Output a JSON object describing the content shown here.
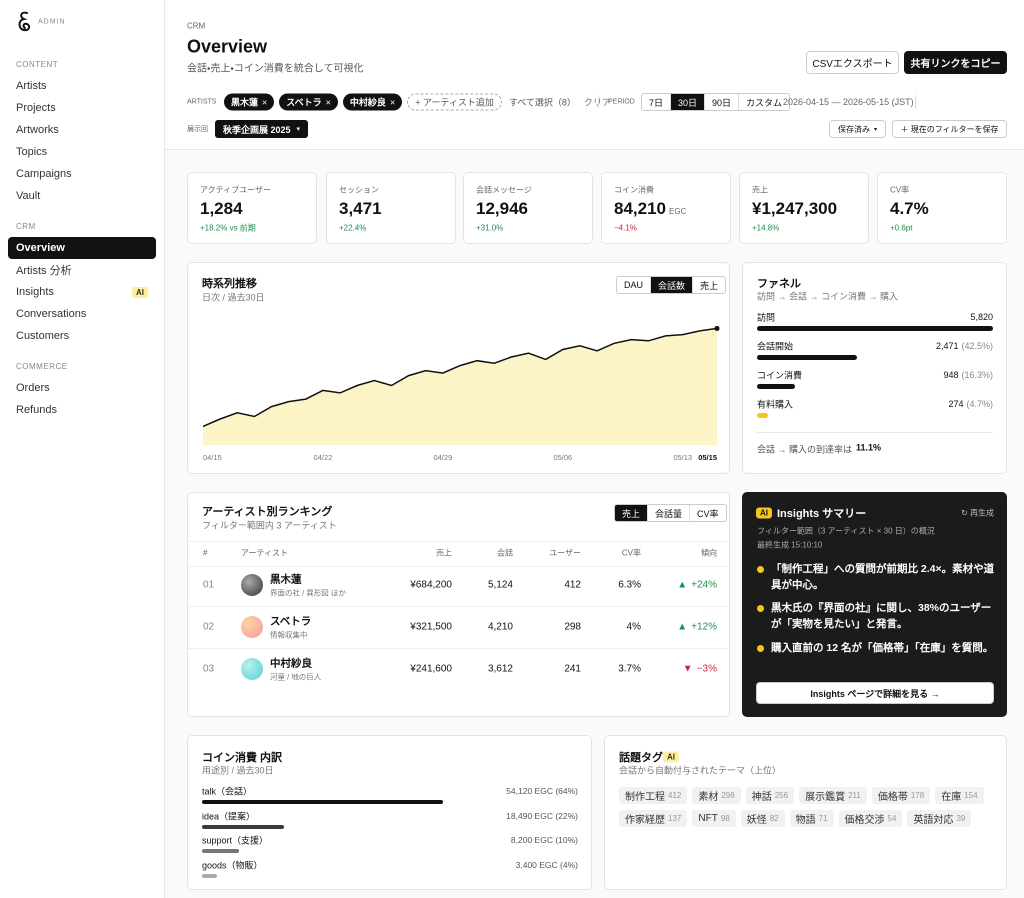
{
  "sidebar": {
    "brand": "ADMIN",
    "sections": [
      {
        "title": "CONTENT",
        "items": [
          {
            "label": "Artists"
          },
          {
            "label": "Projects"
          },
          {
            "label": "Artworks"
          },
          {
            "label": "Topics"
          },
          {
            "label": "Campaigns"
          },
          {
            "label": "Vault"
          }
        ]
      },
      {
        "title": "CRM",
        "items": [
          {
            "label": "Overview"
          },
          {
            "label": "Artists 分析"
          },
          {
            "label": "Insights",
            "badge": "AI"
          },
          {
            "label": "Conversations"
          },
          {
            "label": "Customers"
          }
        ]
      },
      {
        "title": "COMMERCE",
        "items": [
          {
            "label": "Orders"
          },
          {
            "label": "Refunds"
          }
        ]
      }
    ]
  },
  "header": {
    "eyebrow": "CRM",
    "title": "Overview",
    "subtitle": "会話・売上・コイン消費を統合して可視化",
    "buttons": [
      "CSVエクスポート",
      "共有リンクをコピー"
    ]
  },
  "filters": {
    "artists_label": "ARTISTS",
    "artists": [
      "黒木蓮",
      "スベトラ",
      "中村紗良"
    ],
    "add": "+ アーティスト追加",
    "select_all": "すべて選択（8）",
    "clear": "クリア",
    "period_label": "PERIOD",
    "periods": [
      "7日",
      "30日",
      "90日",
      "カスタム"
    ],
    "range": "2026-04-15 — 2026-05-15 (JST)",
    "exhibition_label": "展示回",
    "exhibition": "秋季企画展 2025",
    "saved": "保存済み",
    "save": "＋ 現在のフィルターを保存"
  },
  "kpis": [
    {
      "label": "アクティブユーザー",
      "value": "1,284",
      "delta": "+18.2% vs 前期"
    },
    {
      "label": "セッション",
      "value": "3,471",
      "delta": "+22.4%"
    },
    {
      "label": "会話メッセージ",
      "value": "12,946",
      "delta": "+31.0%"
    },
    {
      "label": "コイン消費",
      "value": "84,210",
      "unit": "EGC",
      "delta": "−4.1%"
    },
    {
      "label": "売上",
      "value": "¥1,247,300",
      "delta": "+14.8%"
    },
    {
      "label": "CV率",
      "value": "4.7%",
      "delta": "+0.6pt"
    }
  ],
  "chart_data": [
    {
      "type": "area",
      "title": "時系列推移",
      "subtitle": "日次 / 過去30日",
      "tabs": [
        "DAU",
        "会話数",
        "売上"
      ],
      "categories": [
        "04/15",
        null,
        null,
        null,
        null,
        null,
        null,
        "04/22",
        null,
        null,
        null,
        null,
        null,
        null,
        "04/29",
        null,
        null,
        null,
        null,
        null,
        null,
        "05/06",
        null,
        null,
        null,
        null,
        null,
        null,
        "05/13",
        null,
        "05/15"
      ],
      "values": [
        15,
        21,
        26,
        23,
        31,
        35,
        37,
        44,
        42,
        48,
        52,
        48,
        56,
        60,
        58,
        64,
        68,
        66,
        71,
        74,
        69,
        77,
        80,
        76,
        82,
        85,
        84,
        88,
        89,
        92,
        94
      ],
      "ylim": [
        0,
        100
      ],
      "color": "#111111",
      "fill": "#fcf4c6"
    },
    {
      "type": "bar",
      "title": "ファネル",
      "subtitle": "訪問 → 会話 → コイン消費 → 購入",
      "categories": [
        "訪問",
        "会話開始",
        "コイン消費",
        "有料購入"
      ],
      "values": [
        5820,
        2471,
        948,
        274
      ],
      "value_labels": [
        "5,820",
        "2,471",
        "948",
        "274"
      ],
      "share_labels": [
        null,
        "(42.5%)",
        "(16.3%)",
        "(4.7%)"
      ],
      "xlim": [
        0,
        5820
      ],
      "colors": [
        "#111111",
        "#111111",
        "#111111",
        "#f2c81b"
      ],
      "footer": "会話 → 購入の到達率は",
      "footer_value": "11.1%"
    },
    {
      "type": "bar",
      "title": "コイン消費 内訳",
      "subtitle": "用途別 / 過去30日",
      "categories": [
        "talk（会話）",
        "idea（提案）",
        "support（支援）",
        "goods（物販）"
      ],
      "values": [
        54120,
        18490,
        8200,
        3400
      ],
      "value_labels": [
        "54,120 EGC (64%)",
        "18,490 EGC (22%)",
        "8,200 EGC (10%)",
        "3,400 EGC (4%)"
      ],
      "xlim": [
        0,
        84210
      ],
      "colors": [
        "#111111",
        "#3a3a3a",
        "#777777",
        "#aaaaaa"
      ]
    }
  ],
  "ranking": {
    "title": "アーティスト別ランキング",
    "subtitle": "フィルター範囲内 3 アーティスト",
    "tabs": [
      "売上",
      "会話量",
      "CV率"
    ],
    "headers": [
      "#",
      "アーティスト",
      "売上",
      "会話",
      "ユーザー",
      "CV率",
      "傾向"
    ],
    "rows": [
      {
        "rank": "01",
        "name": "黒木蓮",
        "sub": "界面の社 / 異形図 ほか",
        "sales": "¥684,200",
        "talks": "5,124",
        "users": "412",
        "cv": "6.3%",
        "icon": "▲",
        "trend": "+24%"
      },
      {
        "rank": "02",
        "name": "スベトラ",
        "sub": "情報収集中",
        "sales": "¥321,500",
        "talks": "4,210",
        "users": "298",
        "cv": "4%",
        "icon": "▲",
        "trend": "+12%"
      },
      {
        "rank": "03",
        "name": "中村紗良",
        "sub": "河童 / 地の巨人",
        "sales": "¥241,600",
        "talks": "3,612",
        "users": "241",
        "cv": "3.7%",
        "icon": "▼",
        "trend": "−3%"
      }
    ]
  },
  "insights": {
    "badge": "AI",
    "title": "Insights サマリー",
    "regen": "↻ 再生成",
    "meta": "フィルター範囲（3 アーティスト × 30 日）の概況",
    "generated": "最終生成 15:10:10",
    "bullets": [
      "「制作工程」への質問が前期比 2.4×。素材や道具が中心。",
      "黒木氏の『界面の社』に関し、38%のユーザーが「実物を見たい」と発言。",
      "購入直前の 12 名が「価格帯」「在庫」を質問。"
    ],
    "button": "Insights ページで詳細を見る →"
  },
  "topics": {
    "title": "話題タグ",
    "badge": "AI",
    "subtitle": "会話から自動付与されたテーマ（上位）",
    "tags": [
      {
        "name": "制作工程",
        "count": 412
      },
      {
        "name": "素材",
        "count": 298
      },
      {
        "name": "神話",
        "count": 256
      },
      {
        "name": "展示鑑賞",
        "count": 211
      },
      {
        "name": "価格帯",
        "count": 178
      },
      {
        "name": "在庫",
        "count": 154
      },
      {
        "name": "作家経歴",
        "count": 137
      },
      {
        "name": "NFT",
        "count": 98
      },
      {
        "name": "妖怪",
        "count": 82
      },
      {
        "name": "物語",
        "count": 71
      },
      {
        "name": "価格交渉",
        "count": 54
      },
      {
        "name": "英語対応",
        "count": 39
      }
    ]
  }
}
